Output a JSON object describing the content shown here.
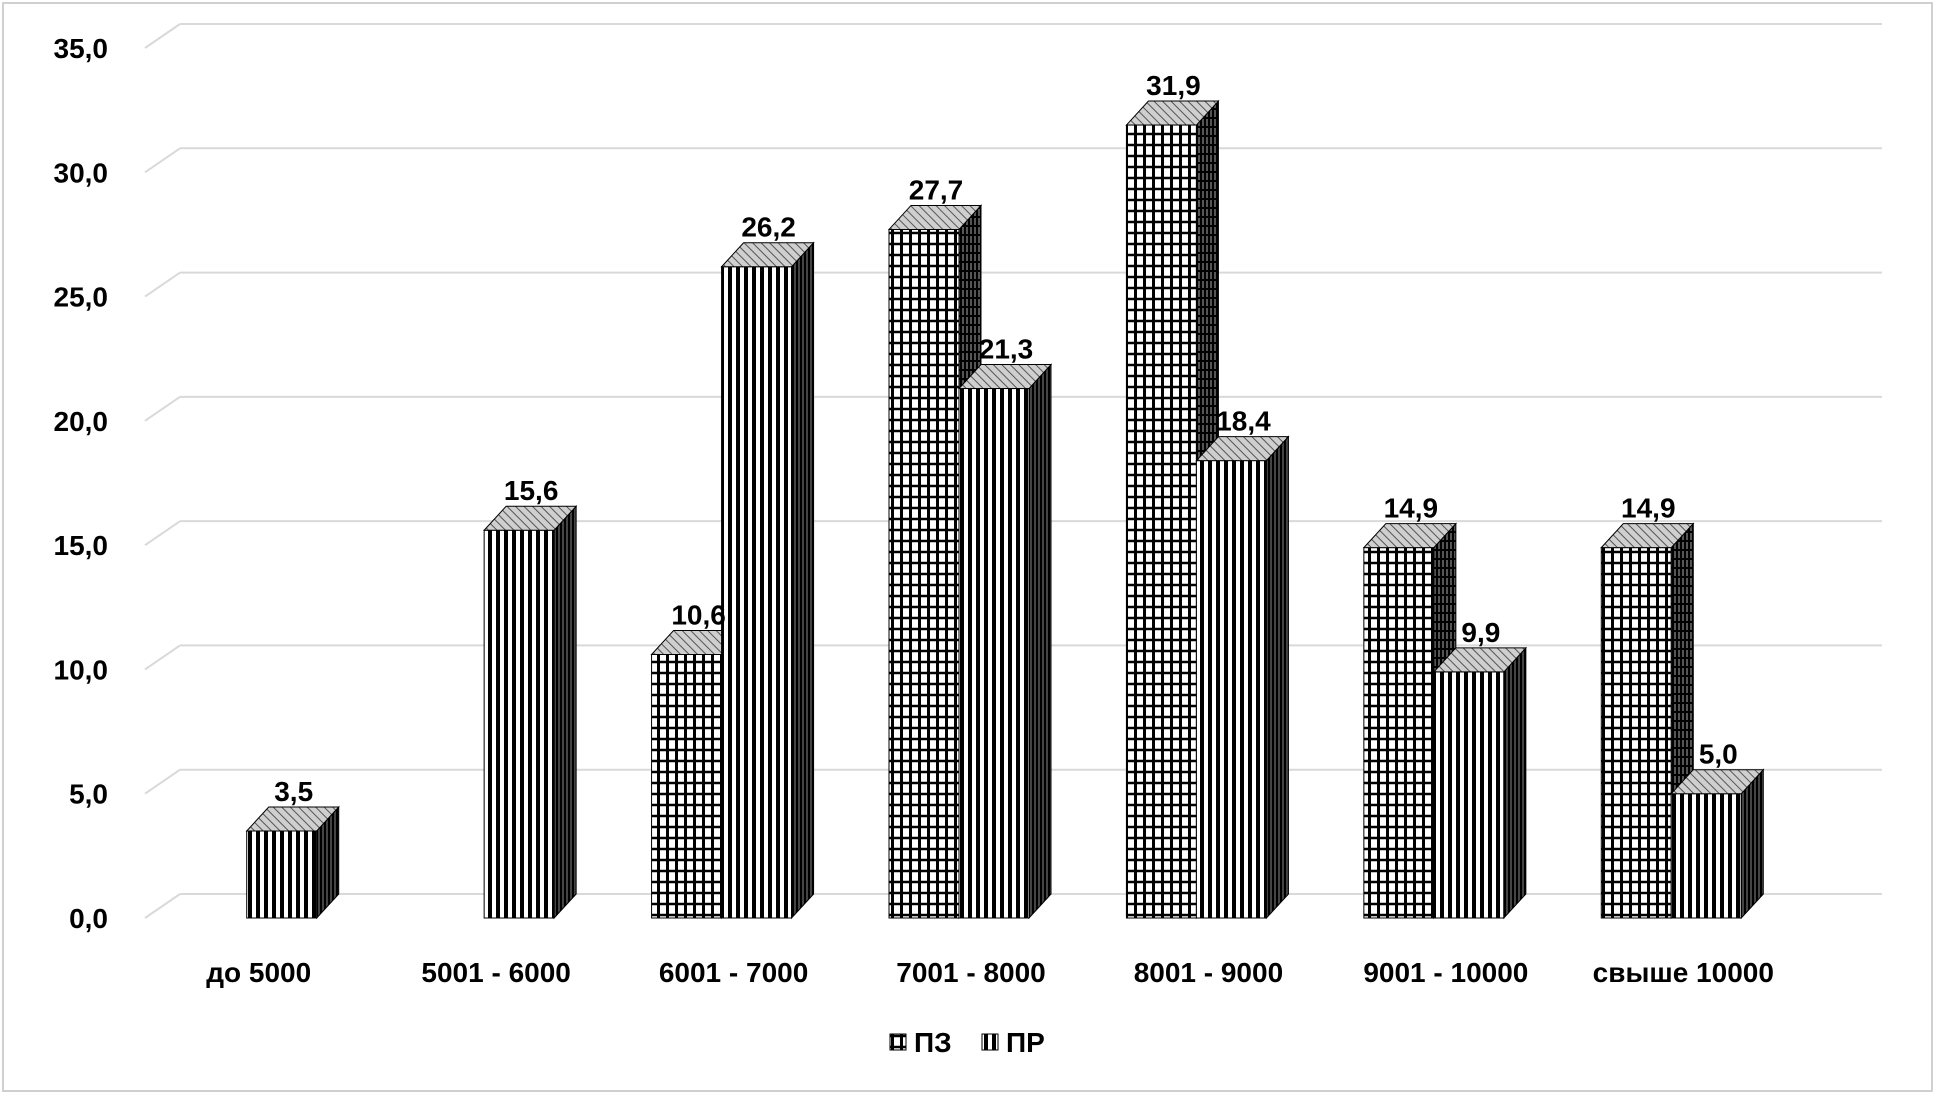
{
  "chart_data": {
    "type": "bar",
    "style": "3d-clustered-column",
    "title": "",
    "xlabel": "",
    "ylabel": "",
    "categories": [
      "до 5000",
      "5001 - 6000",
      "6001 - 7000",
      "7001 - 8000",
      "8001 - 9000",
      "9001 - 10000",
      "свыше 10000"
    ],
    "series": [
      {
        "name": "ПЗ",
        "pattern": "grid",
        "values": [
          null,
          null,
          10.6,
          27.7,
          31.9,
          14.9,
          14.9
        ]
      },
      {
        "name": "ПР",
        "pattern": "vertical-stripes",
        "values": [
          3.5,
          15.6,
          26.2,
          21.3,
          18.4,
          9.9,
          5.0
        ]
      }
    ],
    "data_labels": {
      "ПЗ": [
        "",
        "",
        "10,6",
        "27,7",
        "31,9",
        "14,9",
        "14,9"
      ],
      "ПР": [
        "3,5",
        "15,6",
        "26,2",
        "21,3",
        "18,4",
        "9,9",
        "5,0"
      ]
    },
    "ylim": [
      0,
      35
    ],
    "y_ticks": [
      "0,0",
      "5,0",
      "10,0",
      "15,0",
      "20,0",
      "25,0",
      "30,0",
      "35,0"
    ],
    "grid": true,
    "legend_position": "bottom-center",
    "colors": {
      "ink": "#000000",
      "grid": "#d9d9d9",
      "background": "#ffffff",
      "border": "#d0d0d0"
    }
  }
}
